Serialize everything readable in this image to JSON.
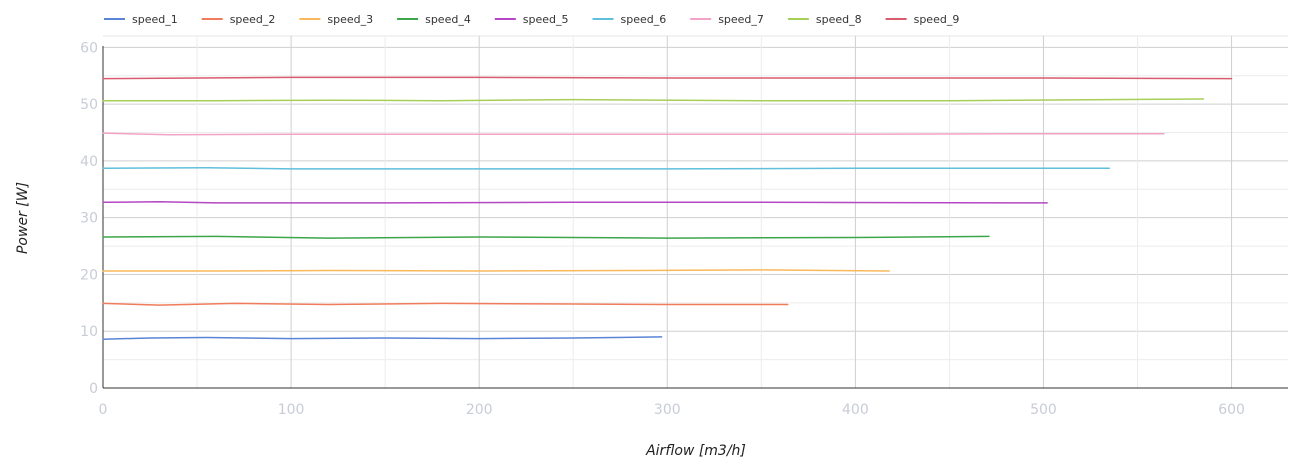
{
  "chart_data": {
    "type": "line",
    "title": "",
    "xlabel": "Airflow [m3/h]",
    "ylabel": "Power [W]",
    "xlim": [
      0,
      630
    ],
    "ylim": [
      0,
      62
    ],
    "x_ticks": [
      "0",
      "100",
      "200",
      "300",
      "400",
      "500",
      "600"
    ],
    "y_ticks": [
      "0",
      "10",
      "20",
      "30",
      "40",
      "50",
      "60"
    ],
    "grid": true,
    "legend_position": "top-left",
    "series": [
      {
        "name": "speed_1",
        "color": "#5b84d6",
        "x": [
          0,
          25,
          55,
          100,
          150,
          200,
          250,
          297
        ],
        "y": [
          8.6,
          8.8,
          8.9,
          8.7,
          8.8,
          8.7,
          8.8,
          9.0
        ]
      },
      {
        "name": "speed_2",
        "color": "#f07c5c",
        "x": [
          0,
          30,
          70,
          120,
          180,
          250,
          300,
          364
        ],
        "y": [
          14.9,
          14.6,
          14.9,
          14.7,
          14.9,
          14.8,
          14.7,
          14.7
        ]
      },
      {
        "name": "speed_3",
        "color": "#f9b85a",
        "x": [
          0,
          60,
          120,
          200,
          280,
          350,
          418
        ],
        "y": [
          20.6,
          20.6,
          20.7,
          20.6,
          20.7,
          20.8,
          20.6
        ]
      },
      {
        "name": "speed_4",
        "color": "#3ca64a",
        "x": [
          0,
          60,
          120,
          200,
          300,
          400,
          471
        ],
        "y": [
          26.6,
          26.7,
          26.4,
          26.6,
          26.4,
          26.5,
          26.7
        ]
      },
      {
        "name": "speed_5",
        "color": "#b547c4",
        "x": [
          0,
          30,
          60,
          150,
          250,
          350,
          502
        ],
        "y": [
          32.7,
          32.8,
          32.6,
          32.6,
          32.7,
          32.7,
          32.6
        ]
      },
      {
        "name": "speed_6",
        "color": "#5fbfdc",
        "x": [
          0,
          55,
          100,
          200,
          300,
          400,
          535
        ],
        "y": [
          38.7,
          38.8,
          38.6,
          38.6,
          38.6,
          38.7,
          38.7
        ]
      },
      {
        "name": "speed_7",
        "color": "#f2a2c6",
        "x": [
          0,
          35,
          100,
          200,
          300,
          400,
          500,
          564
        ],
        "y": [
          44.9,
          44.6,
          44.7,
          44.7,
          44.7,
          44.7,
          44.8,
          44.8
        ]
      },
      {
        "name": "speed_8",
        "color": "#a6cf58",
        "x": [
          0,
          60,
          120,
          180,
          250,
          350,
          450,
          585
        ],
        "y": [
          50.6,
          50.6,
          50.7,
          50.6,
          50.8,
          50.6,
          50.6,
          50.9
        ]
      },
      {
        "name": "speed_9",
        "color": "#d95b6e",
        "x": [
          0,
          50,
          100,
          200,
          300,
          400,
          500,
          600
        ],
        "y": [
          54.5,
          54.6,
          54.7,
          54.7,
          54.6,
          54.6,
          54.6,
          54.5
        ]
      }
    ]
  }
}
